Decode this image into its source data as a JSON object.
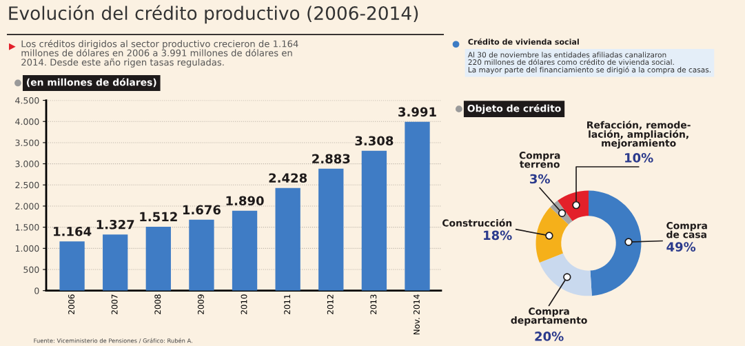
{
  "chart_data": [
    {
      "type": "bar",
      "title": "Evolución del crédito productivo (2006-2014)",
      "subtitle": "Los créditos dirigidos al sector productivo crecieron de 1.164\nmillones de dólares en 2006 a 3.991 millones de dólares en\n2014. Desde este año rigen tasas reguladas.",
      "ylabel": "(en millones de dólares)",
      "categories": [
        "2006",
        "2007",
        "2008",
        "2009",
        "2010",
        "2011",
        "2012",
        "2013",
        "Nov. 2014"
      ],
      "values": [
        1164,
        1327,
        1512,
        1676,
        1890,
        2428,
        2883,
        3308,
        3991
      ],
      "value_labels": [
        "1.164",
        "1.327",
        "1.512",
        "1.676",
        "1.890",
        "2.428",
        "2.883",
        "3.308",
        "3.991"
      ],
      "color": "#3f7cc5",
      "ylim": [
        0,
        4500
      ],
      "yticks": [
        0,
        500,
        {
          "value": 1000,
          "label": "1.000"
        },
        {
          "value": 1500,
          "label": "1.500"
        },
        {
          "value": 2000,
          "label": "2.000"
        },
        {
          "value": 2500,
          "label": "2.500"
        },
        {
          "value": 3000,
          "label": "3.000"
        },
        {
          "value": 3500,
          "label": "3.500"
        },
        {
          "value": 4000,
          "label": "4.000"
        },
        {
          "value": 4500,
          "label": "4.500"
        }
      ],
      "grid": "y",
      "annotations": [
        "Fuente: Viceministerio de Pensiones / Gráfico: Rubén A."
      ]
    },
    {
      "type": "donut",
      "title": "Objeto de crédito",
      "subtitle": "Crédito de vivienda social",
      "categories": [
        "Compra\nde casa",
        "Compra\ndepartamento",
        "Construcción",
        "Compra\nterreno",
        "Refacción, remode-\nlación, ampliación,\nmejoramiento"
      ],
      "values": [
        49,
        20,
        18,
        3,
        10
      ],
      "value_labels": [
        "49%",
        "20%",
        "18%",
        "3%",
        "10%"
      ],
      "colors": [
        "#3d7cc4",
        "#c9d9ee",
        "#f5b01a",
        "#a6a6a6",
        "#e3202a"
      ],
      "annotations": [
        "Al 30 de noviembre las entidades afiliadas canalizaron\n220 millones de dólares como crédito de vivienda social.\nLa mayor parte del financiamiento se dirigió a la compra de casas."
      ]
    }
  ]
}
